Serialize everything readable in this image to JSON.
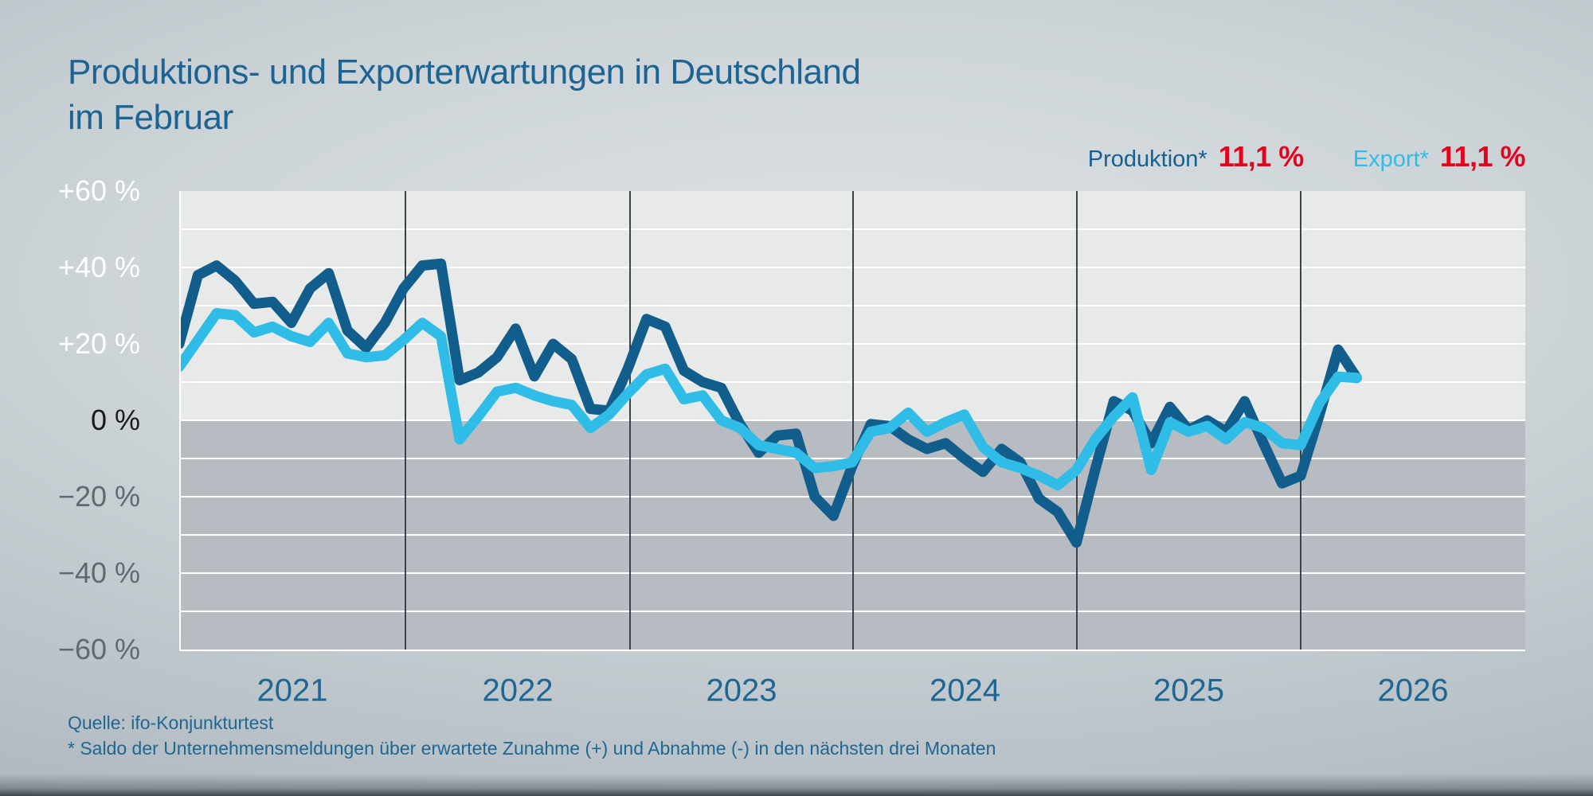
{
  "title": {
    "line1": "Produktions- und Exporterwartungen in Deutschland",
    "line2": "im Februar"
  },
  "legend": {
    "items": [
      {
        "label": "Produktion*",
        "value": "11,1 %",
        "color": "#15608f"
      },
      {
        "label": "Export*",
        "value": "11,1 %",
        "color": "#2fbde7"
      }
    ],
    "value_color": "#e2031f"
  },
  "footer": {
    "source": "Quelle: ifo-Konjunkturtest",
    "note": "* Saldo der Unternehmensmeldungen über erwartete Zunahme (+) und Abnahme (-) in den nächsten drei Monaten"
  },
  "chart_data": {
    "type": "line",
    "title": "Produktions- und Exporterwartungen in Deutschland im Februar",
    "frequency": "monthly",
    "last_point_label": "Februar",
    "legend_position": "top-right",
    "grid": true,
    "x_axis": {
      "year_labels": [
        "2021",
        "2022",
        "2023",
        "2024",
        "2025",
        "2026"
      ]
    },
    "y_axis": {
      "min": -60,
      "max": 60,
      "gridline_step": 10,
      "tick_values": [
        60,
        40,
        20,
        0,
        -20,
        -40,
        -60
      ],
      "tick_labels": [
        "+60 %",
        "+40 %",
        "+20 %",
        "0 %",
        "−20 %",
        "−40 %",
        "−60 %"
      ]
    },
    "series": [
      {
        "name": "Produktion*",
        "color": "#115d8c",
        "latest_value": 11.1,
        "values": [
          20,
          38,
          40.5,
          36.5,
          30.5,
          31,
          25.5,
          34.5,
          38.5,
          23.5,
          19,
          25.5,
          34.5,
          40.5,
          41,
          10.5,
          12.5,
          16.5,
          24,
          11.5,
          20,
          16,
          3,
          2.5,
          13.5,
          26.5,
          24.5,
          13,
          10,
          8.5,
          -1,
          -8.5,
          -4,
          -3.5,
          -20,
          -25,
          -12,
          -1,
          -1.5,
          -5,
          -7.5,
          -6,
          -10,
          -13.5,
          -7.5,
          -11,
          -20.5,
          -24,
          -32,
          -13,
          5,
          2.5,
          -6,
          3.5,
          -2.5,
          0,
          -3,
          5,
          -6,
          -16.5,
          -14.5,
          1.5,
          18.5,
          11.1
        ]
      },
      {
        "name": "Export*",
        "color": "#2fbde7",
        "latest_value": 11.1,
        "values": [
          14,
          21,
          28,
          27.5,
          23,
          24.5,
          22,
          20.5,
          25.5,
          17.5,
          16.5,
          17,
          21,
          25.5,
          22,
          -5,
          1,
          7.5,
          8.5,
          6.5,
          5,
          4,
          -2,
          1.5,
          7,
          12,
          13.5,
          5.5,
          6.5,
          0,
          -2,
          -6.5,
          -7.5,
          -8.5,
          -12.5,
          -12,
          -11,
          -3,
          -2,
          2,
          -3,
          -0.5,
          1.5,
          -7,
          -11,
          -12.5,
          -14.5,
          -17,
          -13,
          -5,
          1,
          6,
          -13,
          -0.5,
          -3,
          -1.5,
          -5,
          -0.5,
          -2,
          -6,
          -6.5,
          4.5,
          11.4,
          11.1
        ]
      }
    ]
  },
  "colors": {
    "title_text": "#1c6493",
    "axis_year_text": "#1e6793",
    "footer_text": "#1e6793",
    "axis_positive": "#ffffff",
    "axis_zero": "#1a1a1a",
    "axis_negative": "#5f6a70",
    "plot_upper": "#e8e9e9",
    "plot_lower": "#b6bcc1",
    "gridline": "#ffffff",
    "year_line": "#3b4248",
    "value_red": "#e2031f"
  }
}
